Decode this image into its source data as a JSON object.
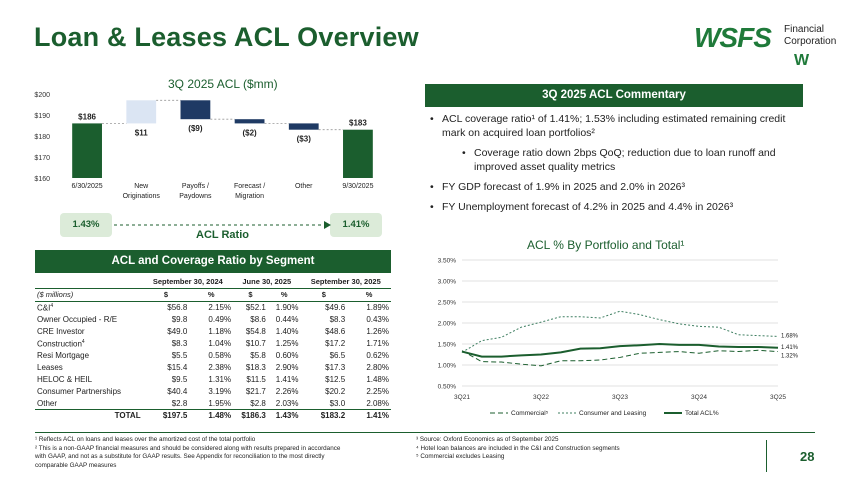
{
  "header": {
    "title": "Loan & Leases ACL Overview",
    "logo_text": "WSFS",
    "logo_sub_line1": "Financial",
    "logo_sub_line2": "Corporation",
    "logo_mark": "W"
  },
  "colors": {
    "brand_green": "#1b5e2e",
    "light_blue": "#dbe5f3",
    "navy": "#1f3a64",
    "pill_bg": "#dcebd9"
  },
  "waterfall": {
    "title": "3Q 2025 ACL ($mm)",
    "ratio_label": "ACL Ratio",
    "ratio_start": "1.43%",
    "ratio_end": "1.41%"
  },
  "segment_table": {
    "title": "ACL and Coverage Ratio by Segment",
    "periods": [
      "September 30, 2024",
      "June 30, 2025",
      "September 30, 2025"
    ],
    "unit_label": "($ millions)",
    "col_dollar": "$",
    "col_pct": "%",
    "rows": [
      {
        "label": "C&I",
        "sup": "4",
        "v": [
          "$56.8",
          "2.15%",
          "$52.1",
          "1.90%",
          "$49.6",
          "1.89%"
        ]
      },
      {
        "label": "Owner Occupied - R/E",
        "sup": "",
        "v": [
          "$9.8",
          "0.49%",
          "$8.6",
          "0.44%",
          "$8.3",
          "0.43%"
        ]
      },
      {
        "label": "CRE Investor",
        "sup": "",
        "v": [
          "$49.0",
          "1.18%",
          "$54.8",
          "1.40%",
          "$48.6",
          "1.26%"
        ]
      },
      {
        "label": "Construction",
        "sup": "4",
        "v": [
          "$8.3",
          "1.04%",
          "$10.7",
          "1.25%",
          "$17.2",
          "1.71%"
        ]
      },
      {
        "label": "Resi Mortgage",
        "sup": "",
        "v": [
          "$5.5",
          "0.58%",
          "$5.8",
          "0.60%",
          "$6.5",
          "0.62%"
        ]
      },
      {
        "label": "Leases",
        "sup": "",
        "v": [
          "$15.4",
          "2.38%",
          "$18.3",
          "2.90%",
          "$17.3",
          "2.80%"
        ]
      },
      {
        "label": "HELOC & HEIL",
        "sup": "",
        "v": [
          "$9.5",
          "1.31%",
          "$11.5",
          "1.41%",
          "$12.5",
          "1.48%"
        ]
      },
      {
        "label": "Consumer Partnerships",
        "sup": "",
        "v": [
          "$40.4",
          "3.19%",
          "$21.7",
          "2.26%",
          "$20.2",
          "2.25%"
        ]
      },
      {
        "label": "Other",
        "sup": "",
        "v": [
          "$2.8",
          "1.95%",
          "$2.8",
          "2.03%",
          "$3.0",
          "2.08%"
        ]
      }
    ],
    "total": {
      "label": "TOTAL",
      "v": [
        "$197.5",
        "1.48%",
        "$186.3",
        "1.43%",
        "$183.2",
        "1.41%"
      ]
    }
  },
  "commentary": {
    "title": "3Q 2025 ACL Commentary",
    "bullets": [
      {
        "text": "ACL coverage ratio¹ of 1.41%; 1.53% including estimated remaining credit mark on acquired loan portfolios²",
        "sub": false
      },
      {
        "text": "Coverage ratio down 2bps QoQ; reduction due to loan runoff and improved asset quality metrics",
        "sub": true
      },
      {
        "text": "FY GDP forecast of 1.9% in 2025 and 2.0% in 2026³",
        "sub": false
      },
      {
        "text": "FY Unemployment forecast of 4.2% in 2025 and 4.4% in 2026³",
        "sub": false
      }
    ]
  },
  "footnotes": {
    "left": [
      "¹ Reflects ACL on loans and leases over the amortized cost of the total portfolio",
      "² This is a non-GAAP financial measures and should be considered along with results prepared in accordance",
      "with GAAP, and not as a substitute for GAAP results. See Appendix for reconciliation to the most directly",
      "comparable GAAP measures"
    ],
    "right": [
      "³ Source: Oxford Economics as of September 2025",
      "⁴ Hotel loan balances are included in the C&I and Construction segments",
      "⁵ Commercial excludes Leasing"
    ]
  },
  "page_number": "28",
  "chart_data": [
    {
      "type": "bar",
      "subtype": "waterfall",
      "title": "3Q 2025 ACL ($mm)",
      "categories": [
        "6/30/2025",
        "New Originations",
        "Payoffs / Paydowns",
        "Forecast / Migration",
        "Other",
        "9/30/2025"
      ],
      "category_lines": [
        [
          "6/30/2025"
        ],
        [
          "New",
          "Originations"
        ],
        [
          "Payoffs /",
          "Paydowns"
        ],
        [
          "Forecast /",
          "Migration"
        ],
        [
          "Other"
        ],
        [
          "9/30/2025"
        ]
      ],
      "values": [
        186,
        11,
        -9,
        -2,
        -3,
        183
      ],
      "kinds": [
        "total",
        "increase",
        "decrease",
        "decrease",
        "decrease",
        "total"
      ],
      "data_labels": [
        "$186",
        "$11",
        "($9)",
        "($2)",
        "($3)",
        "$183"
      ],
      "ylim": [
        160,
        200
      ],
      "yticks": [
        160,
        170,
        180,
        190,
        200
      ],
      "ytick_labels": [
        "$160",
        "$170",
        "$180",
        "$190",
        "$200"
      ],
      "colors": {
        "total": "#1b5e2e",
        "increase": "#dbe5f3",
        "decrease": "#1f3a64"
      }
    },
    {
      "type": "line",
      "title": "ACL % By Portfolio and Total¹",
      "x": [
        "3Q21",
        "4Q21",
        "1Q22",
        "2Q22",
        "3Q22",
        "4Q22",
        "1Q23",
        "2Q23",
        "3Q23",
        "4Q23",
        "1Q24",
        "2Q24",
        "3Q24",
        "4Q24",
        "1Q25",
        "2Q25",
        "3Q25"
      ],
      "xtick_labels": [
        "3Q21",
        "3Q22",
        "3Q23",
        "3Q24",
        "3Q25"
      ],
      "ylim": [
        0.5,
        3.5
      ],
      "yticks": [
        0.5,
        1.0,
        1.5,
        2.0,
        2.5,
        3.0,
        3.5
      ],
      "ytick_labels": [
        "0.50%",
        "1.00%",
        "1.50%",
        "2.00%",
        "2.50%",
        "3.00%",
        "3.50%"
      ],
      "series": [
        {
          "name": "Commercial⁵",
          "style": "dashed",
          "color": "#1b5e2e",
          "values": [
            1.34,
            1.08,
            1.07,
            1.02,
            0.98,
            1.1,
            1.1,
            1.12,
            1.18,
            1.28,
            1.3,
            1.32,
            1.28,
            1.34,
            1.32,
            1.35,
            1.32
          ],
          "end_label": "1.32%"
        },
        {
          "name": "Consumer and Leasing",
          "style": "dashed",
          "color": "#3f7f62",
          "values": [
            1.3,
            1.58,
            1.66,
            1.9,
            2.02,
            2.15,
            2.15,
            2.12,
            2.28,
            2.2,
            2.08,
            1.98,
            1.92,
            1.9,
            1.72,
            1.7,
            1.68
          ],
          "end_label": "1.68%"
        },
        {
          "name": "Total ACL%",
          "style": "solid",
          "color": "#1b5e2e",
          "values": [
            1.32,
            1.2,
            1.2,
            1.23,
            1.25,
            1.3,
            1.39,
            1.4,
            1.45,
            1.47,
            1.5,
            1.48,
            1.48,
            1.44,
            1.43,
            1.43,
            1.41
          ],
          "end_label": "1.41%"
        }
      ]
    }
  ]
}
